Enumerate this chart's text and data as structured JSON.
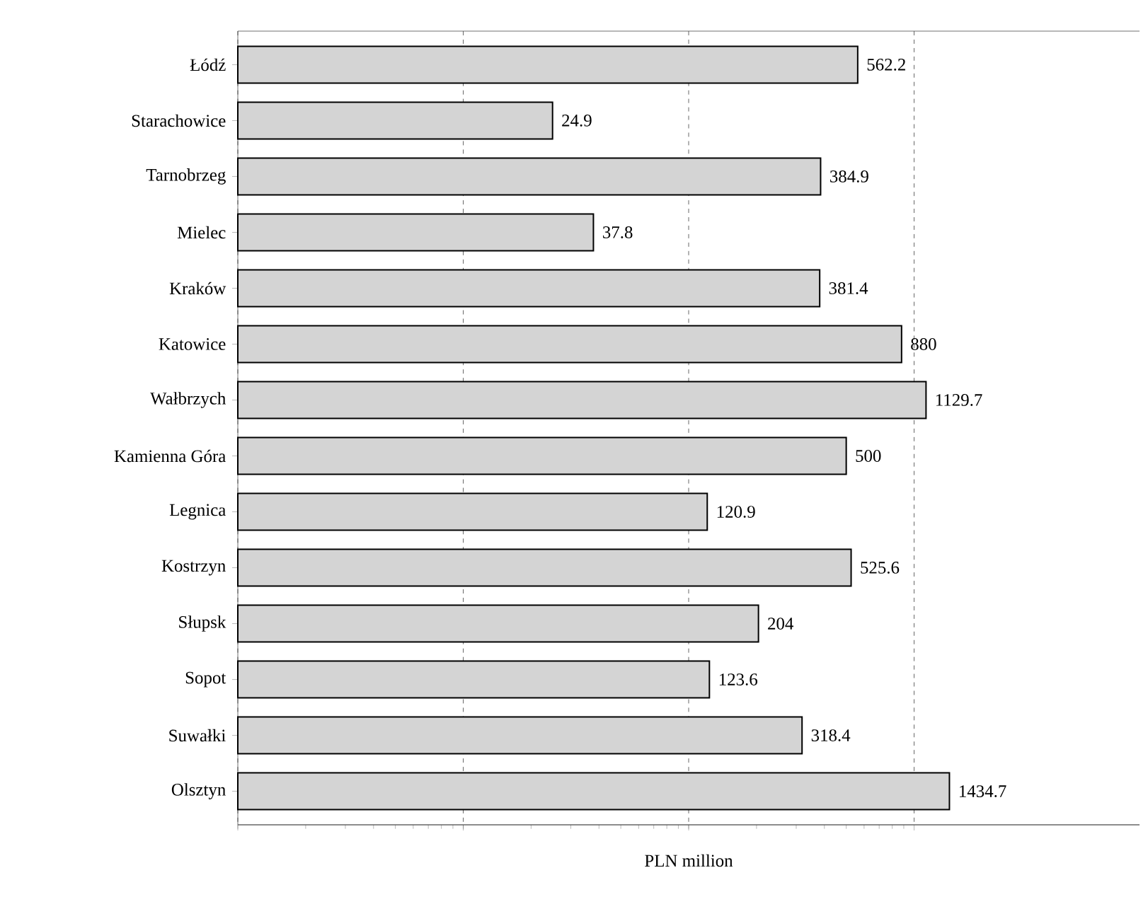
{
  "chart_data": {
    "type": "bar",
    "orientation": "horizontal",
    "xlabel": "PLN million",
    "categories": [
      "Łódź",
      "Starachowice",
      "Tarnobrzeg",
      "Mielec",
      "Kraków",
      "Katowice",
      "Wałbrzych",
      "Kamienna Góra",
      "Legnica",
      "Kostrzyn",
      "Słupsk",
      "Sopot",
      "Suwałki",
      "Olsztyn"
    ],
    "values": [
      562.2,
      24.9,
      384.9,
      37.8,
      381.4,
      880,
      1129.7,
      500,
      120.9,
      525.6,
      204,
      123.6,
      318.4,
      1434.7
    ],
    "color": "#d4d4d4",
    "data_labels": true,
    "log": "x",
    "xlim": [
      1,
      10000
    ],
    "xticks": [
      {
        "value": 1,
        "label": null
      },
      {
        "value": 10,
        "label": null
      },
      {
        "value": 100,
        "label": null
      },
      {
        "value": 1000,
        "label": null
      }
    ],
    "grid": "x",
    "tick_labels": "y"
  }
}
